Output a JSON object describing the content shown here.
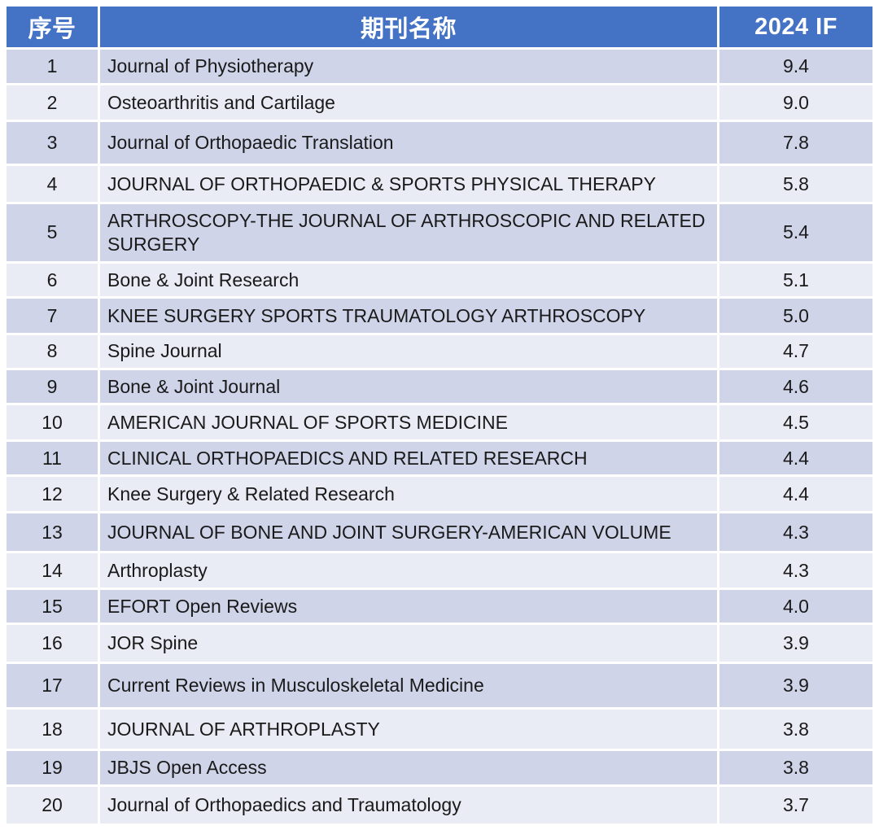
{
  "table": {
    "columns": [
      {
        "key": "index",
        "label": "序号"
      },
      {
        "key": "name",
        "label": "期刊名称"
      },
      {
        "key": "if2024",
        "label": "2024 IF"
      }
    ],
    "rows": [
      {
        "index": "1",
        "name": "Journal of Physiotherapy",
        "if2024": "9.4"
      },
      {
        "index": "2",
        "name": "Osteoarthritis and Cartilage",
        "if2024": "9.0"
      },
      {
        "index": "3",
        "name": "Journal of Orthopaedic Translation",
        "if2024": "7.8"
      },
      {
        "index": "4",
        "name": "JOURNAL OF ORTHOPAEDIC & SPORTS PHYSICAL THERAPY",
        "if2024": "5.8"
      },
      {
        "index": "5",
        "name": "ARTHROSCOPY-THE JOURNAL OF ARTHROSCOPIC AND RELATED SURGERY",
        "if2024": "5.4"
      },
      {
        "index": "6",
        "name": "Bone & Joint Research",
        "if2024": "5.1"
      },
      {
        "index": "7",
        "name": "KNEE SURGERY SPORTS TRAUMATOLOGY ARTHROSCOPY",
        "if2024": "5.0"
      },
      {
        "index": "8",
        "name": "Spine Journal",
        "if2024": "4.7"
      },
      {
        "index": "9",
        "name": "Bone & Joint Journal",
        "if2024": "4.6"
      },
      {
        "index": "10",
        "name": "AMERICAN JOURNAL OF SPORTS MEDICINE",
        "if2024": "4.5"
      },
      {
        "index": "11",
        "name": "CLINICAL ORTHOPAEDICS AND RELATED RESEARCH",
        "if2024": "4.4"
      },
      {
        "index": "12",
        "name": "Knee Surgery & Related Research",
        "if2024": "4.4"
      },
      {
        "index": "13",
        "name": "JOURNAL OF BONE AND JOINT SURGERY-AMERICAN VOLUME",
        "if2024": "4.3"
      },
      {
        "index": "14",
        "name": "Arthroplasty",
        "if2024": "4.3"
      },
      {
        "index": "15",
        "name": "EFORT Open Reviews",
        "if2024": "4.0"
      },
      {
        "index": "16",
        "name": "JOR Spine",
        "if2024": "3.9"
      },
      {
        "index": "17",
        "name": "Current Reviews in Musculoskeletal Medicine",
        "if2024": "3.9"
      },
      {
        "index": "18",
        "name": "JOURNAL OF ARTHROPLASTY",
        "if2024": "3.8"
      },
      {
        "index": "19",
        "name": "JBJS Open Access",
        "if2024": "3.8"
      },
      {
        "index": "20",
        "name": "Journal of Orthopaedics and Traumatology",
        "if2024": "3.7"
      }
    ],
    "colors": {
      "header_bg": "#4472C4",
      "header_text": "#FFFFFF",
      "row_band_dark": "#CFD4E9",
      "row_band_light": "#E9EBF5",
      "body_text": "#1A1A1A",
      "separator": "#FFFFFF"
    }
  }
}
